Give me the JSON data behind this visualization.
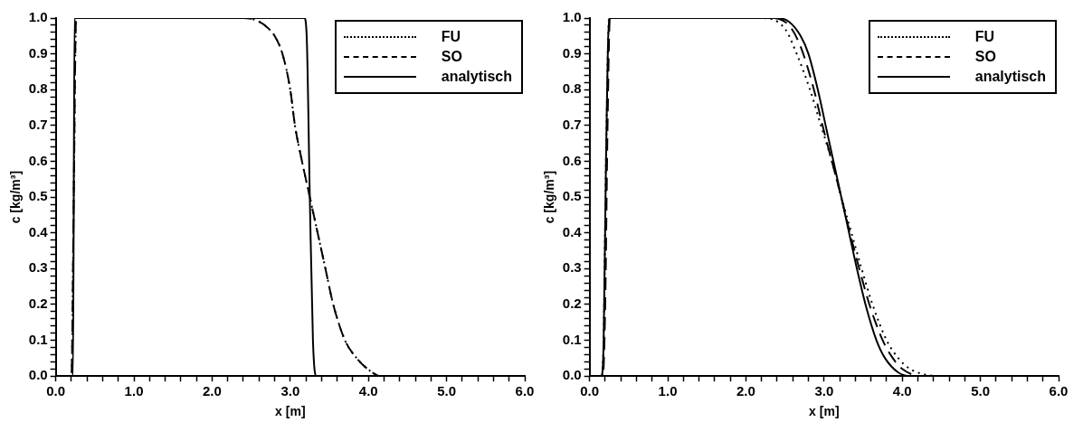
{
  "chart_data": [
    {
      "type": "line",
      "xlabel": "x [m]",
      "ylabel": "c [kg/m³]",
      "xlim": [
        0,
        6
      ],
      "ylim": [
        0,
        1
      ],
      "grid": false,
      "legend": "top right",
      "marker": "none",
      "xticks": [
        {
          "value": 0,
          "label": "0.0"
        },
        {
          "value": 0.2,
          "label": null
        },
        {
          "value": 0.4,
          "label": null
        },
        {
          "value": 0.6,
          "label": null
        },
        {
          "value": 0.8,
          "label": null
        },
        {
          "value": 1,
          "label": "1.0"
        },
        {
          "value": 1.2,
          "label": null
        },
        {
          "value": 1.4,
          "label": null
        },
        {
          "value": 1.6,
          "label": null
        },
        {
          "value": 1.8,
          "label": null
        },
        {
          "value": 2,
          "label": "2.0"
        },
        {
          "value": 2.2,
          "label": null
        },
        {
          "value": 2.4,
          "label": null
        },
        {
          "value": 2.6,
          "label": null
        },
        {
          "value": 2.8,
          "label": null
        },
        {
          "value": 3,
          "label": "3.0"
        },
        {
          "value": 3.2,
          "label": null
        },
        {
          "value": 3.4,
          "label": null
        },
        {
          "value": 3.6,
          "label": null
        },
        {
          "value": 3.8,
          "label": null
        },
        {
          "value": 4,
          "label": "4.0"
        },
        {
          "value": 4.2,
          "label": null
        },
        {
          "value": 4.4,
          "label": null
        },
        {
          "value": 4.6,
          "label": null
        },
        {
          "value": 4.8,
          "label": null
        },
        {
          "value": 5,
          "label": "5.0"
        },
        {
          "value": 5.2,
          "label": null
        },
        {
          "value": 5.4,
          "label": null
        },
        {
          "value": 5.6,
          "label": null
        },
        {
          "value": 5.8,
          "label": null
        },
        {
          "value": 6,
          "label": "6.0"
        }
      ],
      "yticks": [
        {
          "value": 0,
          "label": "0.0"
        },
        {
          "value": 0.02,
          "label": null
        },
        {
          "value": 0.04,
          "label": null
        },
        {
          "value": 0.06,
          "label": null
        },
        {
          "value": 0.08,
          "label": null
        },
        {
          "value": 0.1,
          "label": "0.1"
        },
        {
          "value": 0.12,
          "label": null
        },
        {
          "value": 0.14,
          "label": null
        },
        {
          "value": 0.16,
          "label": null
        },
        {
          "value": 0.18,
          "label": null
        },
        {
          "value": 0.2,
          "label": "0.2"
        },
        {
          "value": 0.22,
          "label": null
        },
        {
          "value": 0.24,
          "label": null
        },
        {
          "value": 0.26,
          "label": null
        },
        {
          "value": 0.28,
          "label": null
        },
        {
          "value": 0.3,
          "label": "0.3"
        },
        {
          "value": 0.32,
          "label": null
        },
        {
          "value": 0.34,
          "label": null
        },
        {
          "value": 0.36,
          "label": null
        },
        {
          "value": 0.38,
          "label": null
        },
        {
          "value": 0.4,
          "label": "0.4"
        },
        {
          "value": 0.42,
          "label": null
        },
        {
          "value": 0.44,
          "label": null
        },
        {
          "value": 0.46,
          "label": null
        },
        {
          "value": 0.48,
          "label": null
        },
        {
          "value": 0.5,
          "label": "0.5"
        },
        {
          "value": 0.52,
          "label": null
        },
        {
          "value": 0.54,
          "label": null
        },
        {
          "value": 0.56,
          "label": null
        },
        {
          "value": 0.58,
          "label": null
        },
        {
          "value": 0.6,
          "label": "0.6"
        },
        {
          "value": 0.62,
          "label": null
        },
        {
          "value": 0.64,
          "label": null
        },
        {
          "value": 0.66,
          "label": null
        },
        {
          "value": 0.68,
          "label": null
        },
        {
          "value": 0.7,
          "label": "0.7"
        },
        {
          "value": 0.72,
          "label": null
        },
        {
          "value": 0.74,
          "label": null
        },
        {
          "value": 0.76,
          "label": null
        },
        {
          "value": 0.78,
          "label": null
        },
        {
          "value": 0.8,
          "label": "0.8"
        },
        {
          "value": 0.82,
          "label": null
        },
        {
          "value": 0.84,
          "label": null
        },
        {
          "value": 0.86,
          "label": null
        },
        {
          "value": 0.88,
          "label": null
        },
        {
          "value": 0.9,
          "label": "0.9"
        },
        {
          "value": 0.92,
          "label": null
        },
        {
          "value": 0.94,
          "label": null
        },
        {
          "value": 0.96,
          "label": null
        },
        {
          "value": 0.98,
          "label": null
        },
        {
          "value": 1,
          "label": "1.0"
        }
      ],
      "series": [
        {
          "name": "FU",
          "color": "#000000",
          "line_style": "dotted",
          "x": [
            0,
            0.2,
            0.23,
            0.26,
            2.4,
            2.5,
            2.6,
            2.7,
            2.8,
            2.9,
            3.0,
            3.06,
            3.15,
            3.25,
            3.35,
            3.45,
            3.55,
            3.7,
            3.85,
            4.05,
            4.15,
            6
          ],
          "values": [
            0,
            0,
            0.5,
            1,
            1,
            0.998,
            0.99,
            0.975,
            0.95,
            0.9,
            0.8,
            0.7,
            0.6,
            0.5,
            0.4,
            0.3,
            0.2,
            0.1,
            0.05,
            0.01,
            0,
            0
          ]
        },
        {
          "name": "SO",
          "color": "#000000",
          "line_style": "dashed",
          "x": [
            0,
            0.2,
            0.23,
            0.26,
            2.4,
            2.5,
            2.6,
            2.7,
            2.8,
            2.9,
            3.0,
            3.06,
            3.15,
            3.25,
            3.35,
            3.45,
            3.55,
            3.7,
            3.85,
            4.05,
            4.15,
            6
          ],
          "values": [
            0,
            0,
            0.5,
            1,
            1,
            0.998,
            0.99,
            0.975,
            0.95,
            0.9,
            0.8,
            0.7,
            0.6,
            0.5,
            0.4,
            0.3,
            0.2,
            0.1,
            0.05,
            0.01,
            0,
            0
          ]
        },
        {
          "name": "analytisch",
          "color": "#000000",
          "line_style": "solid",
          "x": [
            0,
            0.22,
            0.24,
            3.18,
            3.21,
            3.25,
            3.29,
            3.33,
            6
          ],
          "values": [
            0,
            0,
            1,
            1,
            0.95,
            0.5,
            0.1,
            0,
            0
          ]
        }
      ]
    },
    {
      "type": "line",
      "xlabel": "x [m]",
      "ylabel": "c [kg/m³]",
      "xlim": [
        0,
        6
      ],
      "ylim": [
        0,
        1
      ],
      "grid": false,
      "legend": "top right",
      "marker": "none",
      "xticks": [
        {
          "value": 0,
          "label": "0.0"
        },
        {
          "value": 0.2,
          "label": null
        },
        {
          "value": 0.4,
          "label": null
        },
        {
          "value": 0.6,
          "label": null
        },
        {
          "value": 0.8,
          "label": null
        },
        {
          "value": 1,
          "label": "1.0"
        },
        {
          "value": 1.2,
          "label": null
        },
        {
          "value": 1.4,
          "label": null
        },
        {
          "value": 1.6,
          "label": null
        },
        {
          "value": 1.8,
          "label": null
        },
        {
          "value": 2,
          "label": "2.0"
        },
        {
          "value": 2.2,
          "label": null
        },
        {
          "value": 2.4,
          "label": null
        },
        {
          "value": 2.6,
          "label": null
        },
        {
          "value": 2.8,
          "label": null
        },
        {
          "value": 3,
          "label": "3.0"
        },
        {
          "value": 3.2,
          "label": null
        },
        {
          "value": 3.4,
          "label": null
        },
        {
          "value": 3.6,
          "label": null
        },
        {
          "value": 3.8,
          "label": null
        },
        {
          "value": 4,
          "label": "4.0"
        },
        {
          "value": 4.2,
          "label": null
        },
        {
          "value": 4.4,
          "label": null
        },
        {
          "value": 4.6,
          "label": null
        },
        {
          "value": 4.8,
          "label": null
        },
        {
          "value": 5,
          "label": "5.0"
        },
        {
          "value": 5.2,
          "label": null
        },
        {
          "value": 5.4,
          "label": null
        },
        {
          "value": 5.6,
          "label": null
        },
        {
          "value": 5.8,
          "label": null
        },
        {
          "value": 6,
          "label": "6.0"
        }
      ],
      "yticks": [
        {
          "value": 0,
          "label": "0.0"
        },
        {
          "value": 0.02,
          "label": null
        },
        {
          "value": 0.04,
          "label": null
        },
        {
          "value": 0.06,
          "label": null
        },
        {
          "value": 0.08,
          "label": null
        },
        {
          "value": 0.1,
          "label": "0.1"
        },
        {
          "value": 0.12,
          "label": null
        },
        {
          "value": 0.14,
          "label": null
        },
        {
          "value": 0.16,
          "label": null
        },
        {
          "value": 0.18,
          "label": null
        },
        {
          "value": 0.2,
          "label": "0.2"
        },
        {
          "value": 0.22,
          "label": null
        },
        {
          "value": 0.24,
          "label": null
        },
        {
          "value": 0.26,
          "label": null
        },
        {
          "value": 0.28,
          "label": null
        },
        {
          "value": 0.3,
          "label": "0.3"
        },
        {
          "value": 0.32,
          "label": null
        },
        {
          "value": 0.34,
          "label": null
        },
        {
          "value": 0.36,
          "label": null
        },
        {
          "value": 0.38,
          "label": null
        },
        {
          "value": 0.4,
          "label": "0.4"
        },
        {
          "value": 0.42,
          "label": null
        },
        {
          "value": 0.44,
          "label": null
        },
        {
          "value": 0.46,
          "label": null
        },
        {
          "value": 0.48,
          "label": null
        },
        {
          "value": 0.5,
          "label": "0.5"
        },
        {
          "value": 0.52,
          "label": null
        },
        {
          "value": 0.54,
          "label": null
        },
        {
          "value": 0.56,
          "label": null
        },
        {
          "value": 0.58,
          "label": null
        },
        {
          "value": 0.6,
          "label": "0.6"
        },
        {
          "value": 0.62,
          "label": null
        },
        {
          "value": 0.64,
          "label": null
        },
        {
          "value": 0.66,
          "label": null
        },
        {
          "value": 0.68,
          "label": null
        },
        {
          "value": 0.7,
          "label": "0.7"
        },
        {
          "value": 0.72,
          "label": null
        },
        {
          "value": 0.74,
          "label": null
        },
        {
          "value": 0.76,
          "label": null
        },
        {
          "value": 0.78,
          "label": null
        },
        {
          "value": 0.8,
          "label": "0.8"
        },
        {
          "value": 0.82,
          "label": null
        },
        {
          "value": 0.84,
          "label": null
        },
        {
          "value": 0.86,
          "label": null
        },
        {
          "value": 0.88,
          "label": null
        },
        {
          "value": 0.9,
          "label": "0.9"
        },
        {
          "value": 0.92,
          "label": null
        },
        {
          "value": 0.94,
          "label": null
        },
        {
          "value": 0.96,
          "label": null
        },
        {
          "value": 0.98,
          "label": null
        },
        {
          "value": 1,
          "label": "1.0"
        }
      ],
      "series": [
        {
          "name": "FU",
          "color": "#000000",
          "line_style": "dotted",
          "x": [
            0,
            0.15,
            0.18,
            0.21,
            0.25,
            2.2,
            2.5,
            2.65,
            2.82,
            2.96,
            3.1,
            3.22,
            3.35,
            3.48,
            3.62,
            3.8,
            3.95,
            4.1,
            4.5,
            6
          ],
          "values": [
            0,
            0,
            0.1,
            0.6,
            1,
            1,
            0.97,
            0.9,
            0.8,
            0.7,
            0.6,
            0.5,
            0.4,
            0.3,
            0.2,
            0.1,
            0.05,
            0.02,
            0,
            0
          ]
        },
        {
          "name": "SO",
          "color": "#000000",
          "line_style": "dashed",
          "x": [
            0,
            0.17,
            0.2,
            0.23,
            0.26,
            2.3,
            2.55,
            2.7,
            2.87,
            2.98,
            3.1,
            3.22,
            3.33,
            3.45,
            3.58,
            3.75,
            3.88,
            4.0,
            4.25,
            6
          ],
          "values": [
            0,
            0,
            0.2,
            0.7,
            1,
            1,
            0.98,
            0.92,
            0.8,
            0.7,
            0.6,
            0.5,
            0.4,
            0.3,
            0.2,
            0.1,
            0.05,
            0.02,
            0,
            0
          ]
        },
        {
          "name": "analytisch",
          "color": "#000000",
          "line_style": "solid",
          "x": [
            0,
            0.15,
            0.18,
            0.21,
            0.25,
            2.4,
            2.55,
            2.7,
            2.8,
            2.92,
            3.02,
            3.12,
            3.22,
            3.32,
            3.42,
            3.53,
            3.67,
            3.78,
            3.95,
            4.1,
            6
          ],
          "values": [
            0,
            0,
            0.1,
            0.6,
            1,
            1,
            0.99,
            0.95,
            0.9,
            0.8,
            0.7,
            0.6,
            0.5,
            0.4,
            0.3,
            0.2,
            0.1,
            0.05,
            0.01,
            0,
            0
          ]
        }
      ]
    }
  ]
}
